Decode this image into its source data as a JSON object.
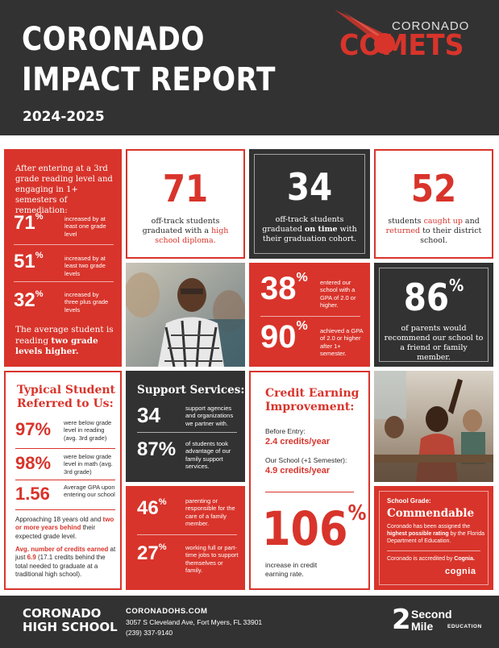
{
  "header": {
    "title_line1": "CORONADO",
    "title_line2": "IMPACT REPORT",
    "year": "2024-2025",
    "logo_top": "CORONADO",
    "logo_main": "COMETS"
  },
  "reading": {
    "intro": "After entering at a 3rd grade reading level and engaging in 1+ semesters of remediation:",
    "stats": [
      {
        "value": "71",
        "unit": "%",
        "label": "increased by at least one grade level"
      },
      {
        "value": "51",
        "unit": "%",
        "label": "increased by at least two grade levels"
      },
      {
        "value": "32",
        "unit": "%",
        "label": "increased by three plus grade levels"
      }
    ],
    "summary_pre": "The average student is reading ",
    "summary_bold": "two grade levels higher."
  },
  "diploma": {
    "value": "71",
    "pre": "off-track students graduated with a ",
    "hl": "high school diploma."
  },
  "ontime": {
    "value": "34",
    "pre": "off-track students graduated ",
    "bold": "on time",
    "post": " with their graduation cohort."
  },
  "caughtup": {
    "value": "52",
    "pre": "students ",
    "hl1": "caught up",
    "mid": " and ",
    "hl2": "returned",
    "post": " to their district school."
  },
  "gpa": {
    "stats": [
      {
        "value": "38",
        "unit": "%",
        "label": "entered our school with a GPA of 2.0 or higher."
      },
      {
        "value": "90",
        "unit": "%",
        "label": "achieved a GPA of 2.0 or higher after 1+ semester."
      }
    ]
  },
  "parents": {
    "value": "86",
    "unit": "%",
    "label": "of parents would recommend our school to a friend or family member."
  },
  "typical": {
    "title": "Typical Student Referred to Us:",
    "stats": [
      {
        "value": "97%",
        "label": "were below grade level in reading (avg. 3rd grade)"
      },
      {
        "value": "98%",
        "label": "were below grade level in math (avg. 3rd grade)"
      },
      {
        "value": "1.56",
        "label": "Average GPA upon entering our school"
      }
    ],
    "para1_pre": "Approaching 18 years old and ",
    "para1_hl": "two or more years behind",
    "para1_post": " their expected grade level.",
    "para2_hl1": "Avg. number of credits earned",
    "para2_mid": " at just ",
    "para2_hl2": "6.9",
    "para2_post": " (17.1 credits behind the total needed to graduate at a traditional high school)."
  },
  "support": {
    "title": "Support Services:",
    "stats": [
      {
        "value": "34",
        "label": "support agencies and organizations we partner with."
      },
      {
        "value": "87%",
        "label": "of students took advantage of our family support services."
      }
    ]
  },
  "family": {
    "stats": [
      {
        "value": "46",
        "unit": "%",
        "label": "parenting or responsible for the care of a family member."
      },
      {
        "value": "27",
        "unit": "%",
        "label": "working full or part-time jobs to support themselves or family."
      }
    ]
  },
  "credit": {
    "title": "Credit Earning Improvement:",
    "before_label": "Before Entry:",
    "before_value": "2.4 credits/year",
    "after_label": "Our School (+1 Semester):",
    "after_value": "4.9 credits/year",
    "big_value": "106",
    "big_unit": "%",
    "big_label": "increase in credit earning rate."
  },
  "grade": {
    "label": "School Grade:",
    "value": "Commendable",
    "text_pre": "Coronado has been assigned the ",
    "text_bold": "highest possible rating",
    "text_post": " by the Florida Department of Education.",
    "accredit_pre": "Coronado is accredited by ",
    "accredit_bold": "Cognia.",
    "cognia": "cognia"
  },
  "footer": {
    "school_line1": "CORONADO",
    "school_line2": "HIGH SCHOOL",
    "website": "CORONADOHS.COM",
    "address": "3057 S Cleveland Ave, Fort Myers, FL 33901",
    "phone": "(239) 337-9140",
    "brand_num": "2",
    "brand_line1": "Second",
    "brand_line2": "Mile",
    "brand_sub": "EDUCATION"
  }
}
